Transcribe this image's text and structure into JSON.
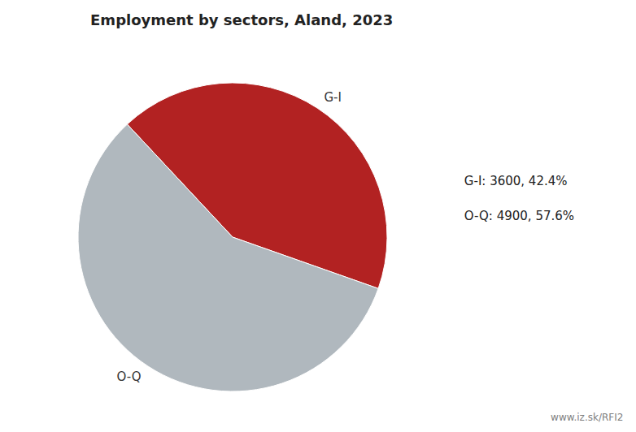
{
  "chart_data": {
    "type": "pie",
    "title": "Employment by sectors, Aland, 2023",
    "categories": [
      "G-I",
      "O-Q"
    ],
    "values": [
      3600,
      4900
    ],
    "colors": [
      "#b22222",
      "#b0b8be"
    ],
    "annotations": [
      "G-I: 3600, 42.4%",
      "O-Q: 4900, 57.6%",
      "www.iz.sk/RFI2"
    ]
  }
}
